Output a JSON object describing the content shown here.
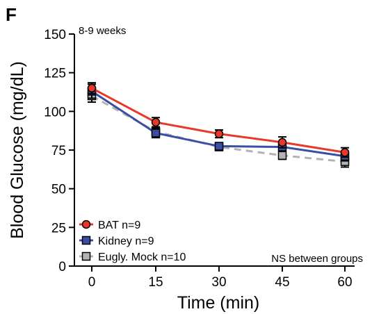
{
  "panel_label": "F",
  "annotations": {
    "age": "8-9 weeks",
    "stats": "NS between groups"
  },
  "colors": {
    "bat": "#e8372b",
    "kidney": "#3a4fa3",
    "mock": "#b3b3b3",
    "axis": "#000000"
  },
  "chart_data": {
    "type": "line",
    "title": "",
    "xlabel": "Time (min)",
    "ylabel": "Blood Glucose (mg/dL)",
    "x": [
      0,
      15,
      30,
      45,
      60
    ],
    "xticks": [
      "0",
      "15",
      "30",
      "45",
      "60"
    ],
    "yticks": [
      "0",
      "25",
      "50",
      "75",
      "100",
      "125",
      "150"
    ],
    "ylim": [
      0,
      150
    ],
    "grid": false,
    "legend_position": "bottom-left",
    "series": [
      {
        "name": "BAT n=9",
        "values": [
          115,
          93,
          85.5,
          80,
          73.5
        ],
        "errors": [
          3.5,
          3,
          2.5,
          3.5,
          3
        ],
        "color": "#e8372b",
        "marker": "circle",
        "dash": "solid"
      },
      {
        "name": "Kidney n=9",
        "values": [
          113,
          86,
          77.5,
          77,
          71
        ],
        "errors": [
          4.5,
          3,
          2,
          2.5,
          3
        ],
        "color": "#3a4fa3",
        "marker": "square",
        "dash": "solid"
      },
      {
        "name": "Eugly. Mock n=10",
        "values": [
          110,
          87,
          77,
          71.5,
          67.5
        ],
        "errors": [
          4,
          3,
          2,
          2.5,
          3.5
        ],
        "color": "#b3b3b3",
        "marker": "square",
        "dash": "dashed"
      }
    ]
  }
}
